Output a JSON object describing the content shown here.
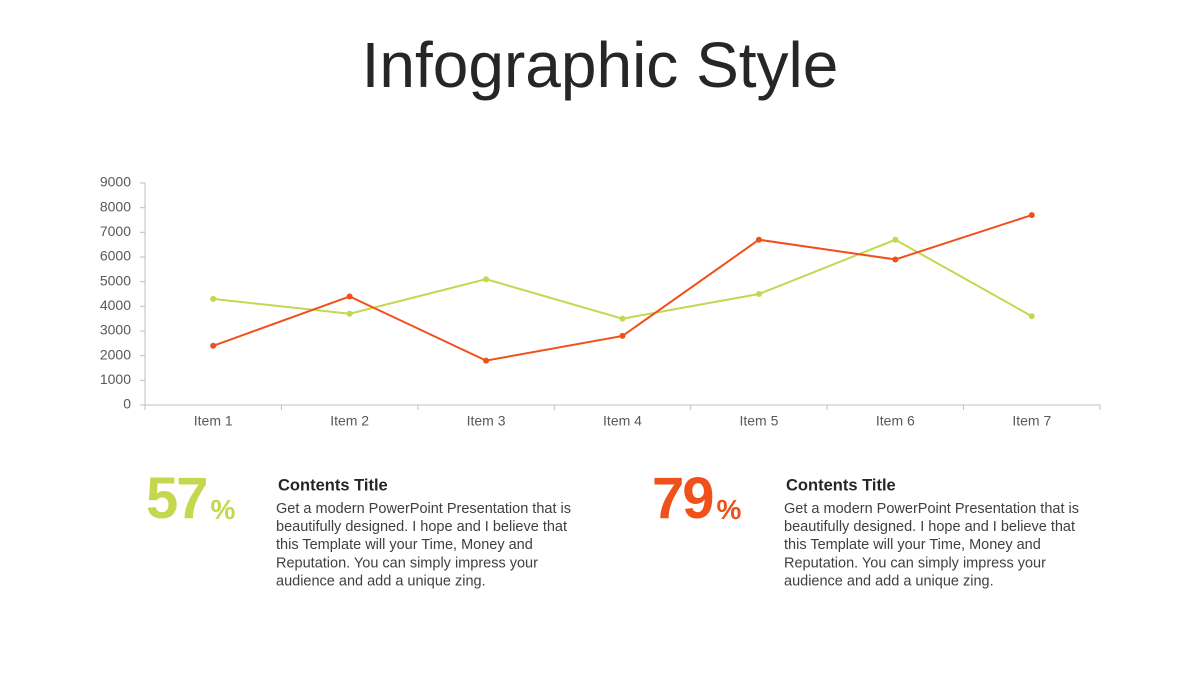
{
  "title": "Infographic Style",
  "chart_data": {
    "type": "line",
    "categories": [
      "Item 1",
      "Item 2",
      "Item 3",
      "Item 4",
      "Item 5",
      "Item 6",
      "Item 7"
    ],
    "series": [
      {
        "color": "#c5d74f",
        "values": [
          4300,
          3700,
          5100,
          3500,
          4500,
          6700,
          3600
        ]
      },
      {
        "color": "#f0501a",
        "values": [
          2400,
          4400,
          1800,
          2800,
          6700,
          5900,
          7700
        ]
      }
    ],
    "ylim": [
      0,
      9000
    ],
    "yticks": [
      0,
      1000,
      2000,
      3000,
      4000,
      5000,
      6000,
      7000,
      8000,
      9000
    ],
    "grid": false
  },
  "stats": [
    {
      "value": 57,
      "unit": "%",
      "color": "#c5d74f",
      "heading": "Contents Title",
      "body": [
        "Get a modern PowerPoint  Presentation that is",
        "beautifully designed. I hope and I believe that",
        "this Template will your Time, Money and",
        "Reputation. You can simply impress your",
        "audience and add a unique zing."
      ]
    },
    {
      "value": 79,
      "unit": "%",
      "color": "#f0501a",
      "heading": "Contents Title",
      "body": [
        "Get a modern PowerPoint  Presentation that is",
        "beautifully designed. I hope and I believe that",
        "this Template will your Time, Money and",
        "Reputation. You can simply impress your",
        "audience and add a unique zing."
      ]
    }
  ]
}
